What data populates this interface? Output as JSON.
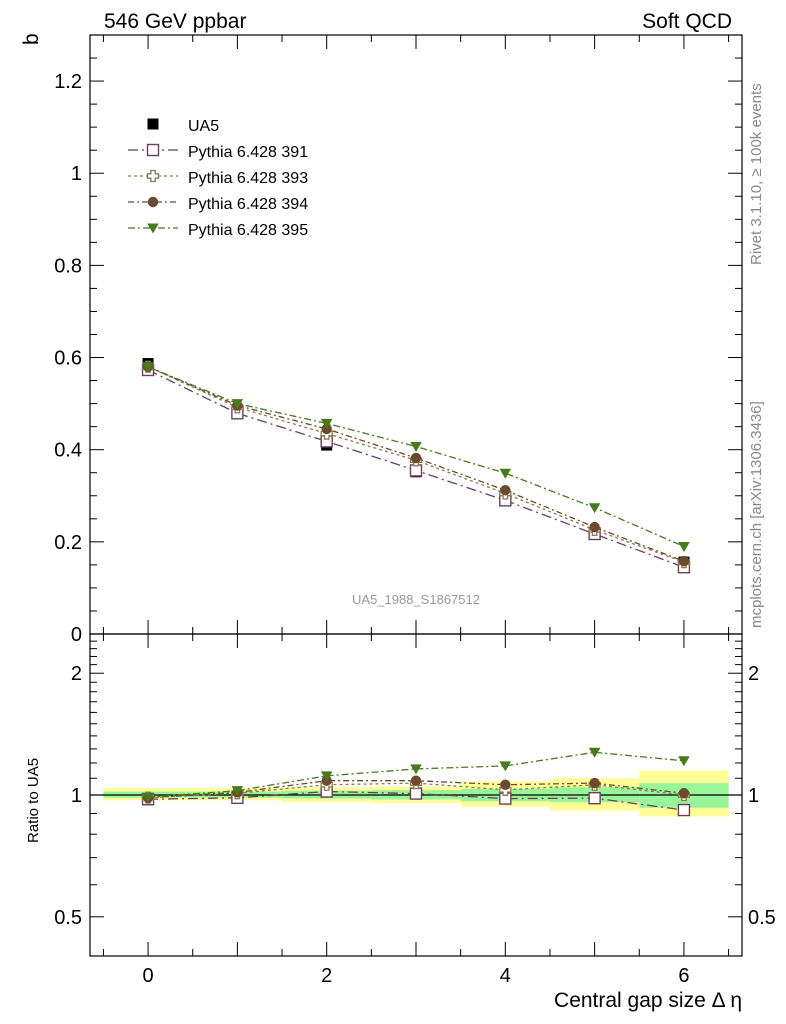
{
  "header": {
    "left_title": "546 GeV ppbar",
    "right_title": "Soft QCD"
  },
  "side_labels": {
    "rivet": "Rivet 3.1.10, ≥ 100k events",
    "mcplots": "mcplots.cern.ch [arXiv:1306.3436]"
  },
  "chart_data": [
    {
      "type": "scatter",
      "panel": "main",
      "analysis_label": "UA5_1988_S1867512",
      "ylabel": "b",
      "xlabel": "Central gap size Δ η",
      "xlim": [
        -0.65,
        6.65
      ],
      "ylim": [
        0,
        1.3
      ],
      "yticks": [
        0.2,
        0.4,
        0.6,
        0.8,
        1,
        1.2
      ],
      "ytick_labels": [
        "0.2",
        "0.4",
        "0.6",
        "0.8",
        "1",
        "1.2"
      ],
      "bottom_tick_label": "0",
      "legend_position": "top-left",
      "series": [
        {
          "name": "UA5",
          "marker": "filled-square",
          "color": "#000000",
          "x": [
            0,
            1,
            2,
            3,
            4,
            6
          ],
          "y": [
            0.587,
            0.487,
            0.41,
            0.352,
            0.296,
            0.156
          ],
          "yerr": [
            0.01,
            0.01,
            0.01,
            0.009,
            0.009,
            0.01
          ]
        },
        {
          "name": "Pythia 6.428 391",
          "marker": "open-square",
          "color": "#6b3f5e",
          "x": [
            0,
            1,
            2,
            3,
            4,
            5,
            6
          ],
          "y": [
            0.573,
            0.479,
            0.418,
            0.355,
            0.29,
            0.217,
            0.145
          ]
        },
        {
          "name": "Pythia 6.428 393",
          "marker": "open-cross",
          "color": "#8a7a50",
          "x": [
            0,
            1,
            2,
            3,
            4,
            5,
            6
          ],
          "y": [
            0.58,
            0.492,
            0.435,
            0.377,
            0.305,
            0.226,
            0.156
          ]
        },
        {
          "name": "Pythia 6.428 394",
          "marker": "filled-circle",
          "color": "#6b4a2e",
          "x": [
            0,
            1,
            2,
            3,
            4,
            5,
            6
          ],
          "y": [
            0.58,
            0.496,
            0.445,
            0.382,
            0.312,
            0.232,
            0.158
          ]
        },
        {
          "name": "Pythia 6.428 395",
          "marker": "filled-triangle-down",
          "color": "#4a7a1e",
          "x": [
            0,
            1,
            2,
            3,
            4,
            5,
            6
          ],
          "y": [
            0.58,
            0.5,
            0.457,
            0.407,
            0.349,
            0.274,
            0.19
          ]
        }
      ]
    },
    {
      "type": "scatter",
      "panel": "ratio",
      "ylabel": "Ratio to UA5",
      "xlabel": "Central gap size Δ η",
      "xlim": [
        -0.65,
        6.65
      ],
      "ylim": [
        0.4,
        2.5
      ],
      "yscale": "log",
      "yticks": [
        0.5,
        1,
        2
      ],
      "ytick_labels": [
        "0.5",
        "1",
        "2"
      ],
      "xticks": [
        0,
        2,
        4,
        6
      ],
      "xtick_labels": [
        "0",
        "2",
        "4",
        "6"
      ],
      "reference_line": 1,
      "bands": {
        "bins": [
          [
            -0.5,
            0.5
          ],
          [
            0.5,
            1.5
          ],
          [
            1.5,
            2.5
          ],
          [
            2.5,
            3.5
          ],
          [
            3.5,
            4.5
          ],
          [
            4.5,
            5.5
          ],
          [
            5.5,
            6.5
          ]
        ],
        "inner_color": "#99f599",
        "outer_color": "#ffff99",
        "inner": [
          [
            0.985,
            1.02
          ],
          [
            0.985,
            1.02
          ],
          [
            0.98,
            1.025
          ],
          [
            0.975,
            1.028
          ],
          [
            0.965,
            1.035
          ],
          [
            0.96,
            1.045
          ],
          [
            0.93,
            1.07
          ]
        ],
        "outer": [
          [
            0.97,
            1.04
          ],
          [
            0.97,
            1.04
          ],
          [
            0.96,
            1.045
          ],
          [
            0.955,
            1.05
          ],
          [
            0.935,
            1.08
          ],
          [
            0.915,
            1.1
          ],
          [
            0.885,
            1.15
          ]
        ]
      },
      "series": [
        {
          "name": "Pythia 6.428 391",
          "marker": "open-square",
          "color": "#6b3f5e",
          "x": [
            0,
            1,
            2,
            3,
            4,
            5,
            6
          ],
          "y": [
            0.976,
            0.984,
            1.02,
            1.008,
            0.98,
            0.982,
            0.918
          ]
        },
        {
          "name": "Pythia 6.428 393",
          "marker": "open-cross",
          "color": "#8a7a50",
          "x": [
            0,
            1,
            2,
            3,
            4,
            5,
            6
          ],
          "y": [
            0.985,
            1.01,
            1.06,
            1.07,
            1.03,
            1.06,
            1.0
          ]
        },
        {
          "name": "Pythia 6.428 394",
          "marker": "filled-circle",
          "color": "#6b4a2e",
          "x": [
            0,
            1,
            2,
            3,
            4,
            5,
            6
          ],
          "y": [
            0.985,
            1.015,
            1.085,
            1.085,
            1.06,
            1.07,
            1.01
          ]
        },
        {
          "name": "Pythia 6.428 395",
          "marker": "filled-triangle-down",
          "color": "#4a7a1e",
          "x": [
            0,
            1,
            2,
            3,
            4,
            5,
            6
          ],
          "y": [
            0.988,
            1.025,
            1.115,
            1.16,
            1.18,
            1.275,
            1.215
          ]
        }
      ]
    }
  ]
}
